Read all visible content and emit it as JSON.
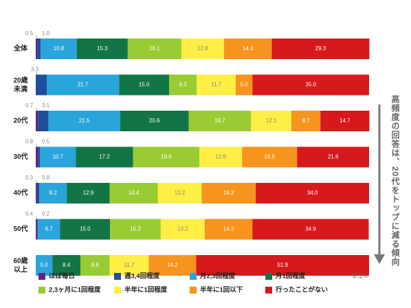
{
  "chart_data": {
    "type": "bar",
    "orientation": "horizontal",
    "stacked": true,
    "unit_label": "単位%",
    "side_note": "高頻度の回答は、20代をトップに減る傾向",
    "categories": [
      [
        "全体"
      ],
      [
        "20歳",
        "未満"
      ],
      [
        "20代"
      ],
      [
        "30代"
      ],
      [
        "40代"
      ],
      [
        "50代"
      ],
      [
        "60歳",
        "以上"
      ]
    ],
    "xlim": [
      0,
      100
    ],
    "series": [
      {
        "name": "ほぼ毎日",
        "color": "#5b2a86",
        "values": [
          0.5,
          0,
          0.7,
          0.8,
          0.3,
          0.4,
          0
        ]
      },
      {
        "name": "週3,4回程度",
        "color": "#1f4e9c",
        "values": [
          1.0,
          3.3,
          3.1,
          0.5,
          0.8,
          0.2,
          0
        ]
      },
      {
        "name": "月2,3回程度",
        "color": "#2aa5dc",
        "values": [
          10.8,
          21.7,
          21.5,
          10.7,
          8.2,
          6.7,
          5.0
        ]
      },
      {
        "name": "月1回程度",
        "color": "#137547",
        "values": [
          15.3,
          15.0,
          20.6,
          17.2,
          12.9,
          15.0,
          8.4
        ]
      },
      {
        "name": "2,3ヶ月に1回程度",
        "color": "#99cc33",
        "values": [
          16.1,
          8.3,
          18.7,
          19.9,
          14.4,
          15.2,
          8.8
        ]
      },
      {
        "name": "半年に1回程度",
        "color": "#ffee44",
        "values": [
          12.8,
          11.7,
          12.1,
          12.8,
          13.2,
          13.2,
          11.7
        ]
      },
      {
        "name": "半年に1回以下",
        "color": "#f7941d",
        "values": [
          14.3,
          5.0,
          8.7,
          16.5,
          16.2,
          14.3,
          14.2
        ]
      },
      {
        "name": "行ったことがない",
        "color": "#d7191c",
        "values": [
          29.3,
          35.0,
          14.7,
          21.6,
          34.0,
          34.9,
          51.9
        ]
      }
    ],
    "label_colors": [
      "#ffffff",
      "#ffffff",
      "#ffffff",
      "#ffffff",
      "#ffffff",
      "#888888",
      "#ffffff",
      "#ffffff"
    ],
    "small_labels": [
      {
        "row": 0,
        "texts": [
          "0.5",
          "1.0"
        ]
      },
      {
        "row": 1,
        "texts": [
          "3.3"
        ]
      },
      {
        "row": 2,
        "texts": [
          "0.7",
          "3.1"
        ]
      },
      {
        "row": 3,
        "texts": [
          "0.8",
          "0.5"
        ]
      },
      {
        "row": 4,
        "texts": [
          "0.3",
          "0.8"
        ]
      },
      {
        "row": 5,
        "texts": [
          "0.4",
          "0.2"
        ]
      }
    ]
  }
}
